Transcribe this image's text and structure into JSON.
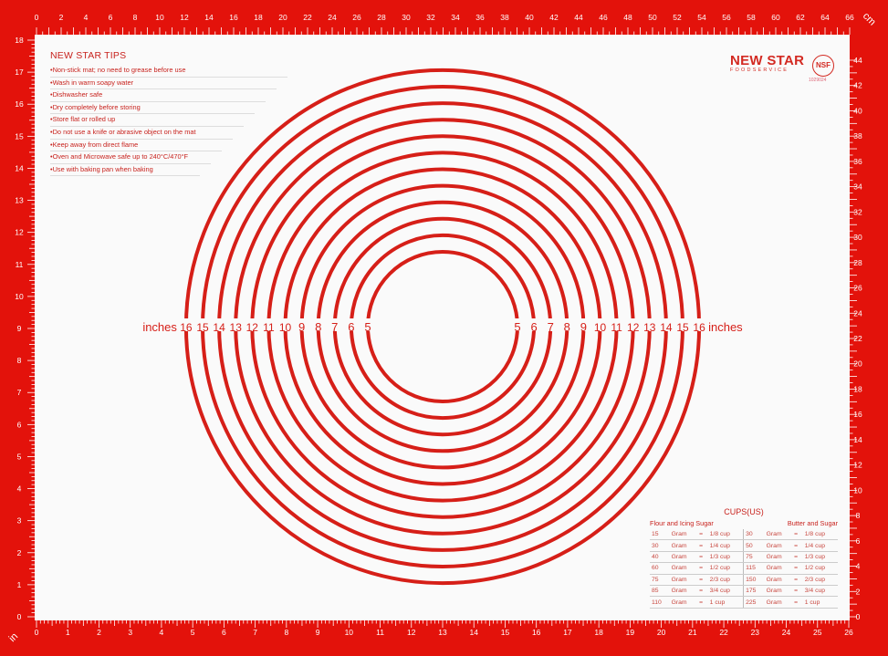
{
  "colors": {
    "mat_red": "#e3120b",
    "print_red": "#d61f18",
    "surface": "#fafafa"
  },
  "rulers": {
    "top": {
      "unit": "cm",
      "from": 0,
      "to": 66,
      "label_step": 2
    },
    "right": {
      "unit": "cm",
      "from": 0,
      "to": 44,
      "label_step": 2
    },
    "left": {
      "unit": "in",
      "from": 0,
      "to": 18,
      "label_step": 1
    },
    "bottom": {
      "unit": "in",
      "from": 0,
      "to": 26,
      "label_step": 1
    }
  },
  "circles_inches": [
    5,
    6,
    7,
    8,
    9,
    10,
    11,
    12,
    13,
    14,
    15,
    16
  ],
  "inches_word": "inches",
  "tips": {
    "title": "NEW STAR TIPS",
    "items": [
      "•Non-stick mat; no need to grease before use",
      "•Wash in warm soapy water",
      "•Dishwasher safe",
      "•Dry completely before storing",
      "•Store flat or rolled up",
      "•Do not use a knife or abrasive object on the mat",
      "•Keep away from direct flame",
      "•Oven and Microwave safe up to 240°C/470°F",
      "•Use with baking pan when baking"
    ]
  },
  "logo": {
    "brand": "NEW STAR",
    "sub": "FOODSERVICE",
    "nsf": "NSF",
    "nsf_number": "1029024"
  },
  "cups": {
    "title": "CUPS(US)",
    "left_header": "Flour and Icing Sugar",
    "right_header": "Butter and Sugar",
    "unit": "Gram",
    "eq": "=",
    "rows": [
      {
        "l": "15",
        "lc": "1/8 cup",
        "r": "30",
        "rc": "1/8 cup"
      },
      {
        "l": "30",
        "lc": "1/4 cup",
        "r": "50",
        "rc": "1/4 cup"
      },
      {
        "l": "40",
        "lc": "1/3 cup",
        "r": "75",
        "rc": "1/3 cup"
      },
      {
        "l": "60",
        "lc": "1/2 cup",
        "r": "115",
        "rc": "1/2 cup"
      },
      {
        "l": "75",
        "lc": "2/3 cup",
        "r": "150",
        "rc": "2/3 cup"
      },
      {
        "l": "85",
        "lc": "3/4 cup",
        "r": "175",
        "rc": "3/4 cup"
      },
      {
        "l": "110",
        "lc": "1 cup",
        "r": "225",
        "rc": "1 cup"
      }
    ]
  }
}
